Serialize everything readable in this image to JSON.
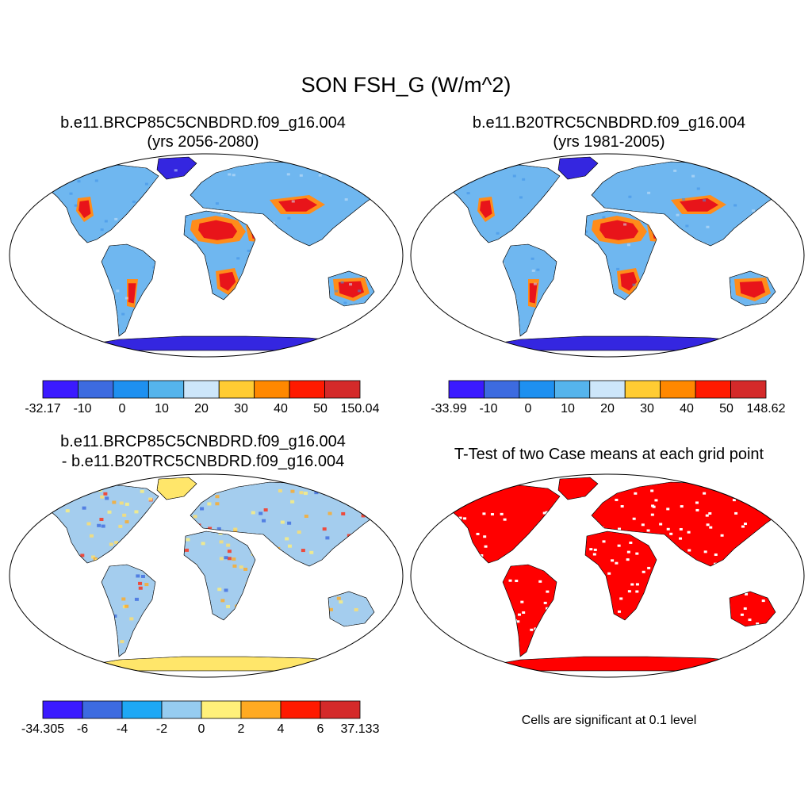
{
  "figure": {
    "title": "SON FSH_G (W/m^2)"
  },
  "panels": [
    {
      "title_line1": "b.e11.BRCP85C5CNBDRD.f09_g16.004",
      "title_line2": "(yrs 2056-2080)",
      "colorbar": {
        "labels": [
          "-32.17",
          "-10",
          "0",
          "10",
          "20",
          "30",
          "40",
          "50",
          "150.04"
        ],
        "colors": [
          "#3b1aff",
          "#3d6be0",
          "#1e90f0",
          "#55b4ec",
          "#cde6fa",
          "#ffcc33",
          "#ff8800",
          "#ff1a00",
          "#d42a2a"
        ]
      },
      "palette": {
        "ocean": "#ffffff",
        "land": "#6fb7f0",
        "ice": "#3426e0",
        "hot": "#e8141a",
        "warm": "#ff8c1a",
        "mild": "#ffd23c",
        "outline": "#000000"
      }
    },
    {
      "title_line1": "b.e11.B20TRC5CNBDRD.f09_g16.004",
      "title_line2": "(yrs 1981-2005)",
      "colorbar": {
        "labels": [
          "-33.99",
          "-10",
          "0",
          "10",
          "20",
          "30",
          "40",
          "50",
          "148.62"
        ],
        "colors": [
          "#3b1aff",
          "#3d6be0",
          "#1e90f0",
          "#55b4ec",
          "#cde6fa",
          "#ffcc33",
          "#ff8800",
          "#ff1a00",
          "#d42a2a"
        ]
      },
      "palette": {
        "ocean": "#ffffff",
        "land": "#6fb7f0",
        "ice": "#3426e0",
        "hot": "#e8141a",
        "warm": "#ff8c1a",
        "mild": "#ffd23c",
        "outline": "#000000"
      }
    },
    {
      "title_line1": "b.e11.BRCP85C5CNBDRD.f09_g16.004",
      "title_line2": "- b.e11.B20TRC5CNBDRD.f09_g16.004",
      "colorbar": {
        "labels": [
          "-34.305",
          "-6",
          "-4",
          "-2",
          "0",
          "2",
          "4",
          "6",
          "37.133"
        ],
        "colors": [
          "#3b1aff",
          "#3d6be0",
          "#1ea8f5",
          "#96ccf0",
          "#fff07a",
          "#ffaa22",
          "#ff1a00",
          "#d42a2a"
        ]
      },
      "palette": {
        "ocean": "#ffffff",
        "land": "#a4cdee",
        "ice": "#ffe66a",
        "hot": "#ff2a10",
        "warm": "#ffa020",
        "mild": "#fff07a",
        "outline": "#000000"
      }
    },
    {
      "title_line1": "T-Test of two Case means at each grid point",
      "title_line2": "",
      "note": "Cells are significant at 0.1 level",
      "palette": {
        "ocean": "#ffffff",
        "land": "#ff0000",
        "ice": "#ff0000",
        "hot": "#ff0000",
        "warm": "#ff0000",
        "mild": "#ff0000",
        "outline": "#000000"
      }
    }
  ]
}
